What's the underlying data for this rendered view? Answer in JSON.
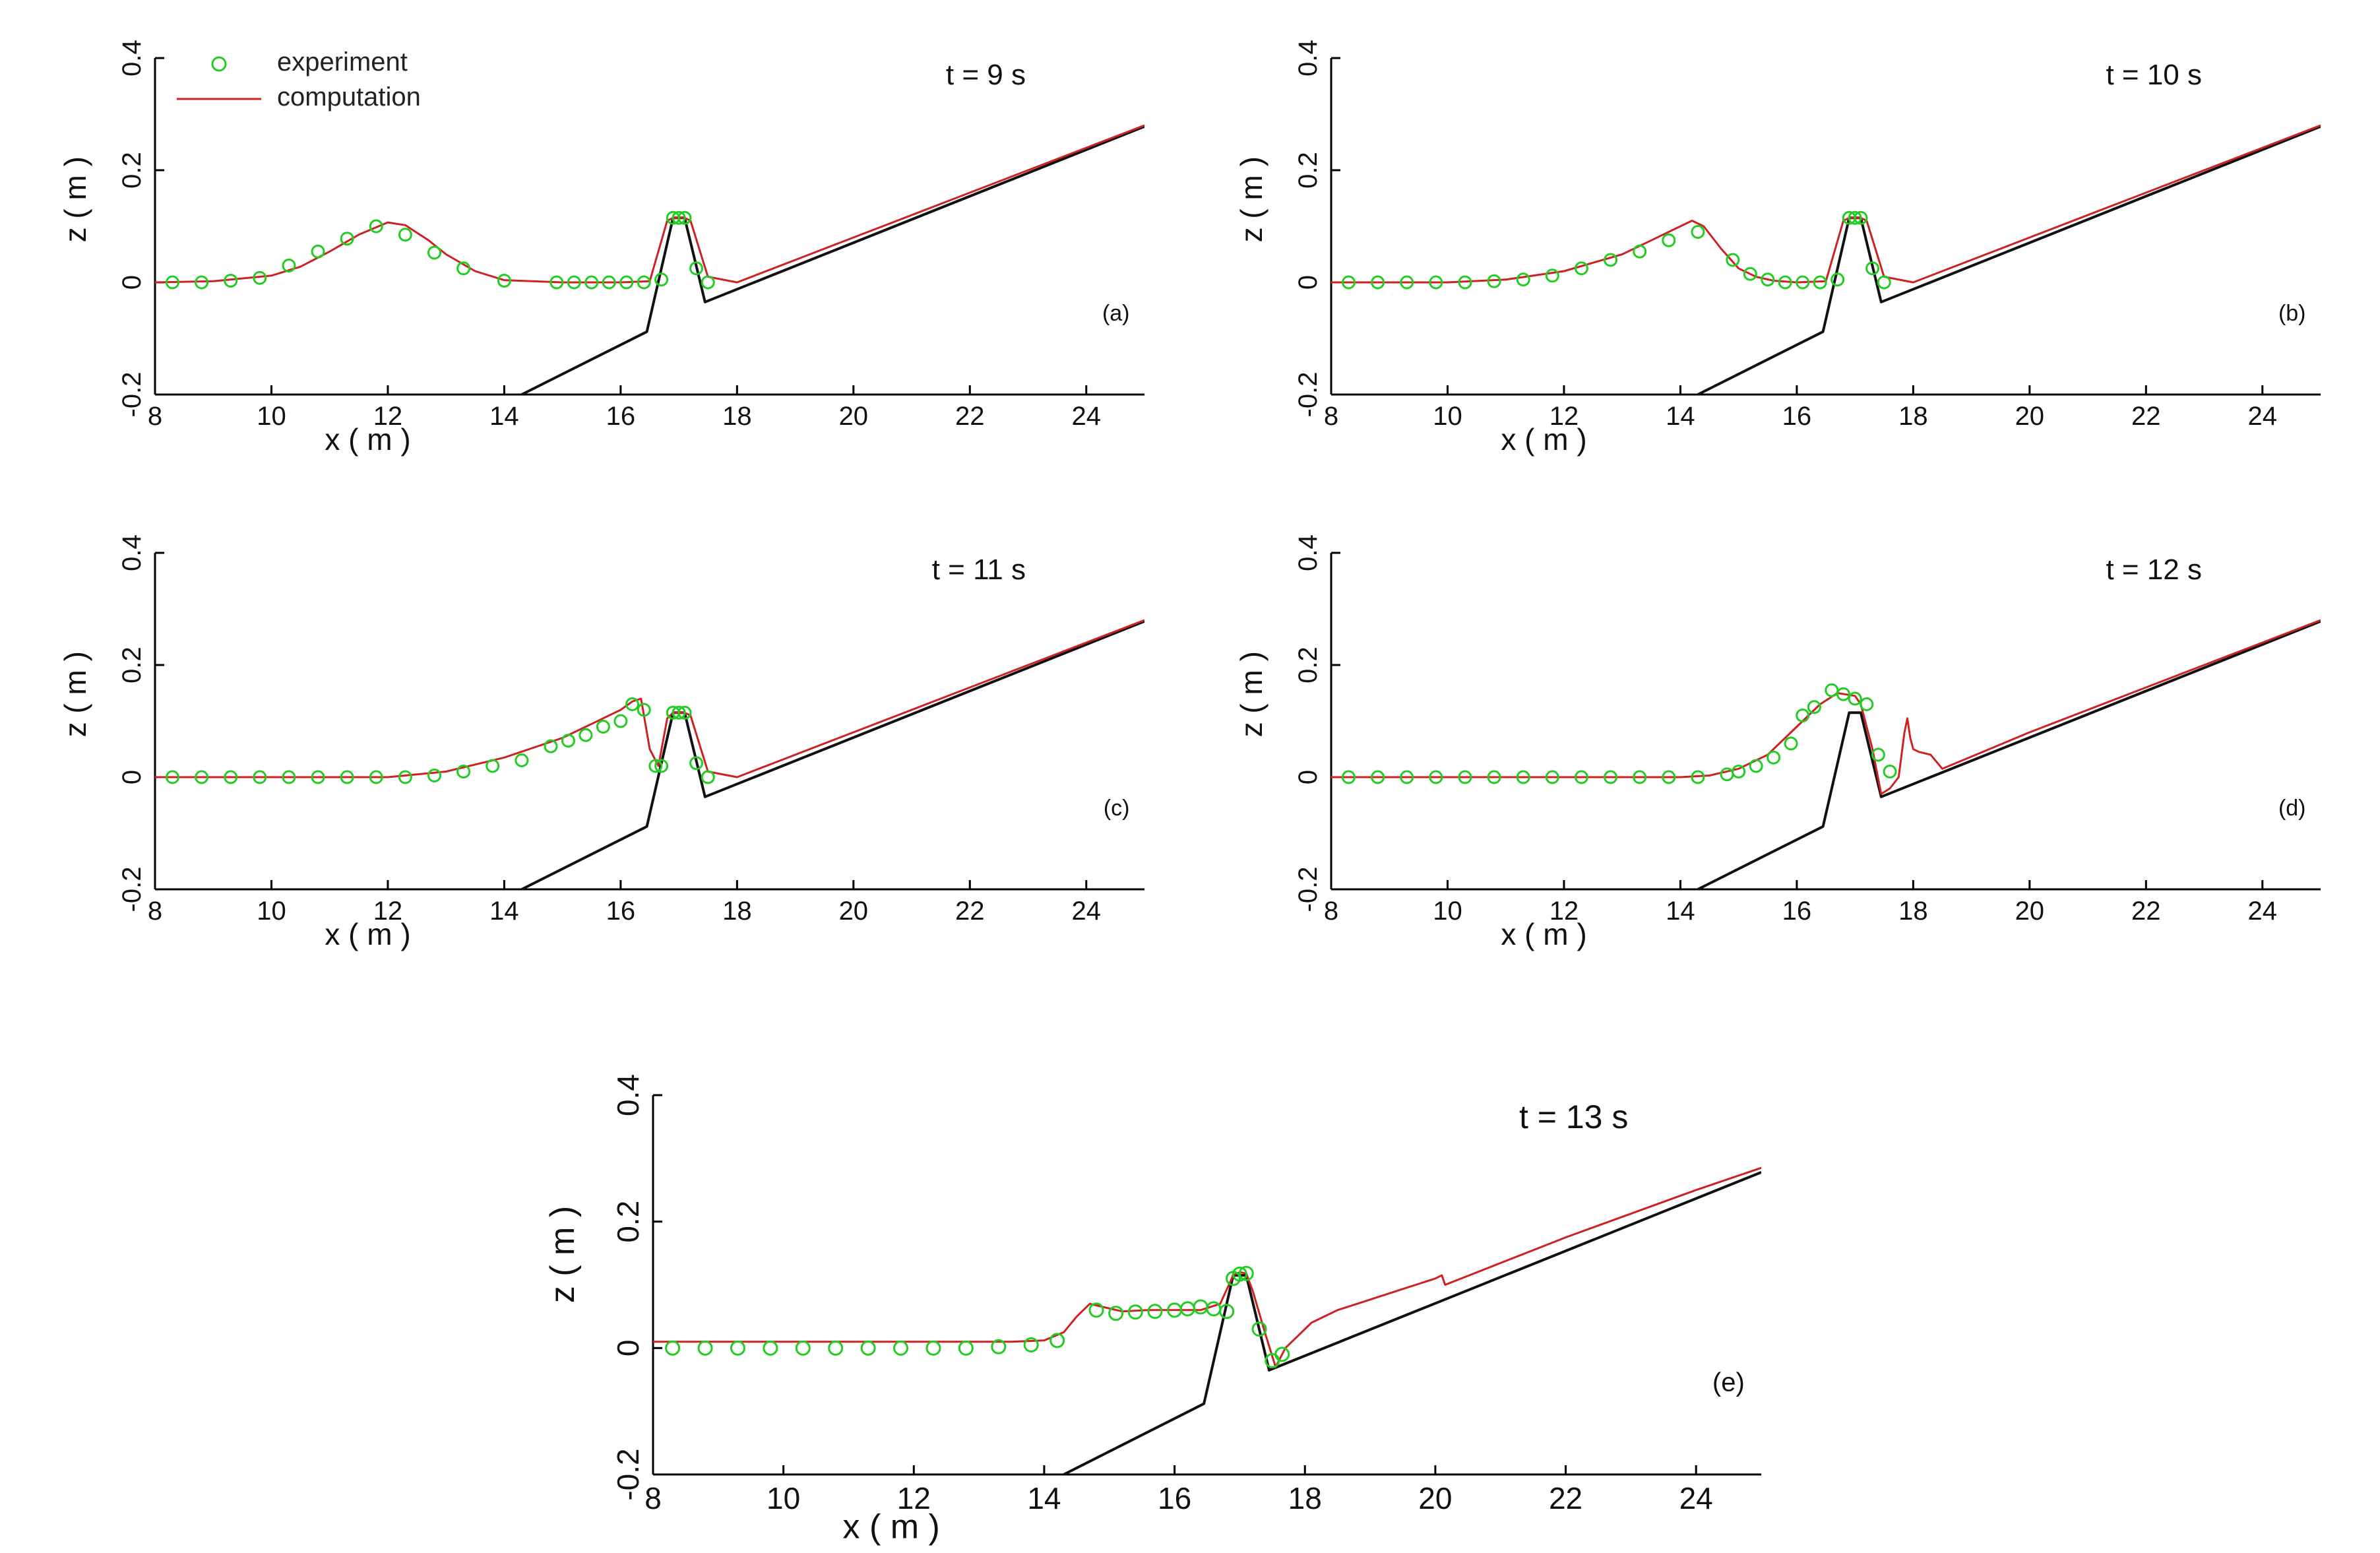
{
  "legend": {
    "experiment_label": "experiment",
    "computation_label": "computation",
    "placement": "top-left of panel (a)",
    "experiment_color": "#22cc22",
    "computation_color": "#cc2222",
    "bottom_color": "#111111"
  },
  "chart_data": [
    {
      "type": "line",
      "panel_label": "(a)",
      "time_label": "t = 9 s",
      "xlabel": "x ( m )",
      "ylabel": "z ( m )",
      "xlim": [
        8,
        25
      ],
      "ylim": [
        -0.2,
        0.4
      ],
      "xticks": [
        "8",
        "10",
        "12",
        "14",
        "16",
        "18",
        "20",
        "22",
        "24"
      ],
      "yticks": [
        "-0.2",
        "0",
        "0.2",
        "0.4"
      ],
      "grid": false,
      "series": [
        {
          "name": "computation",
          "x": [
            8.0,
            9.0,
            10.0,
            10.5,
            11.0,
            11.5,
            12.0,
            12.3,
            12.7,
            13.0,
            13.5,
            14.0,
            15.0,
            16.0,
            16.5,
            16.8,
            16.9,
            17.0,
            17.1,
            17.2,
            17.5,
            18.0,
            20.0,
            22.0,
            24.0,
            25.0
          ],
          "y": [
            0.0,
            0.002,
            0.012,
            0.028,
            0.055,
            0.085,
            0.107,
            0.102,
            0.075,
            0.05,
            0.02,
            0.004,
            0.0,
            0.0,
            0.002,
            0.11,
            0.115,
            0.115,
            0.115,
            0.11,
            0.01,
            0.0,
            0.08,
            0.16,
            0.24,
            0.28
          ]
        },
        {
          "name": "experiment",
          "x": [
            8.3,
            8.8,
            9.3,
            9.8,
            10.3,
            10.8,
            11.3,
            11.8,
            12.3,
            12.8,
            13.3,
            14.0,
            14.9,
            15.2,
            15.5,
            15.8,
            16.1,
            16.4,
            16.7,
            16.9,
            17.0,
            17.1,
            17.3,
            17.5
          ],
          "y": [
            0.0,
            0.0,
            0.003,
            0.008,
            0.03,
            0.055,
            0.078,
            0.1,
            0.085,
            0.053,
            0.025,
            0.003,
            0.0,
            0.0,
            0.0,
            0.0,
            0.0,
            0.0,
            0.005,
            0.115,
            0.115,
            0.115,
            0.025,
            0.0
          ]
        },
        {
          "name": "bottom",
          "x": [
            14.3,
            16.45,
            16.9,
            17.1,
            17.45,
            25.0
          ],
          "y": [
            -0.2,
            -0.088,
            0.115,
            0.115,
            -0.035,
            0.278
          ]
        }
      ]
    },
    {
      "type": "line",
      "panel_label": "(b)",
      "time_label": "t = 10 s",
      "xlabel": "x ( m )",
      "ylabel": "z ( m )",
      "xlim": [
        8,
        25
      ],
      "ylim": [
        -0.2,
        0.4
      ],
      "xticks": [
        "8",
        "10",
        "12",
        "14",
        "16",
        "18",
        "20",
        "22",
        "24"
      ],
      "yticks": [
        "-0.2",
        "0",
        "0.2",
        "0.4"
      ],
      "grid": false,
      "series": [
        {
          "name": "computation",
          "x": [
            8.0,
            10.0,
            11.0,
            12.0,
            13.0,
            13.5,
            14.0,
            14.2,
            14.4,
            14.7,
            15.0,
            15.3,
            15.6,
            16.0,
            16.5,
            16.8,
            16.9,
            17.0,
            17.1,
            17.2,
            17.5,
            18.0,
            20.0,
            22.0,
            24.0,
            25.0
          ],
          "y": [
            0.0,
            0.0,
            0.005,
            0.02,
            0.05,
            0.075,
            0.1,
            0.11,
            0.1,
            0.06,
            0.025,
            0.01,
            0.003,
            0.0,
            0.002,
            0.11,
            0.115,
            0.115,
            0.115,
            0.11,
            0.01,
            0.0,
            0.08,
            0.16,
            0.24,
            0.28
          ]
        },
        {
          "name": "experiment",
          "x": [
            8.3,
            8.8,
            9.3,
            9.8,
            10.3,
            10.8,
            11.3,
            11.8,
            12.3,
            12.8,
            13.3,
            13.8,
            14.3,
            14.9,
            15.2,
            15.5,
            15.8,
            16.1,
            16.4,
            16.7,
            16.9,
            17.0,
            17.1,
            17.3,
            17.5
          ],
          "y": [
            0.0,
            0.0,
            0.0,
            0.0,
            0.0,
            0.002,
            0.005,
            0.012,
            0.025,
            0.04,
            0.055,
            0.075,
            0.09,
            0.04,
            0.015,
            0.005,
            0.0,
            0.0,
            0.0,
            0.005,
            0.115,
            0.115,
            0.115,
            0.025,
            0.0
          ]
        },
        {
          "name": "bottom",
          "x": [
            14.3,
            16.45,
            16.9,
            17.1,
            17.45,
            25.0
          ],
          "y": [
            -0.2,
            -0.088,
            0.115,
            0.115,
            -0.035,
            0.278
          ]
        }
      ]
    },
    {
      "type": "line",
      "panel_label": "(c)",
      "time_label": "t = 11 s",
      "xlabel": "x ( m )",
      "ylabel": "z ( m )",
      "xlim": [
        8,
        25
      ],
      "ylim": [
        -0.2,
        0.4
      ],
      "xticks": [
        "8",
        "10",
        "12",
        "14",
        "16",
        "18",
        "20",
        "22",
        "24"
      ],
      "yticks": [
        "-0.2",
        "0",
        "0.2",
        "0.4"
      ],
      "grid": false,
      "series": [
        {
          "name": "computation",
          "x": [
            8.0,
            12.0,
            13.0,
            14.0,
            15.0,
            15.5,
            16.0,
            16.2,
            16.35,
            16.5,
            16.65,
            16.8,
            16.9,
            17.0,
            17.1,
            17.2,
            17.5,
            18.0,
            20.0,
            22.0,
            24.0,
            25.0
          ],
          "y": [
            0.0,
            0.0,
            0.01,
            0.035,
            0.07,
            0.095,
            0.12,
            0.135,
            0.14,
            0.05,
            0.02,
            0.105,
            0.115,
            0.115,
            0.115,
            0.11,
            0.01,
            0.0,
            0.08,
            0.16,
            0.24,
            0.28
          ]
        },
        {
          "name": "experiment",
          "x": [
            8.3,
            8.8,
            9.3,
            9.8,
            10.3,
            10.8,
            11.3,
            11.8,
            12.3,
            12.8,
            13.3,
            13.8,
            14.3,
            14.8,
            15.1,
            15.4,
            15.7,
            16.0,
            16.2,
            16.4,
            16.6,
            16.7,
            16.9,
            17.0,
            17.1,
            17.3,
            17.5
          ],
          "y": [
            0.0,
            0.0,
            0.0,
            0.0,
            0.0,
            0.0,
            0.0,
            0.0,
            0.0,
            0.003,
            0.01,
            0.02,
            0.03,
            0.055,
            0.065,
            0.075,
            0.09,
            0.1,
            0.13,
            0.12,
            0.02,
            0.02,
            0.115,
            0.115,
            0.115,
            0.025,
            0.0
          ]
        },
        {
          "name": "bottom",
          "x": [
            14.3,
            16.45,
            16.9,
            17.1,
            17.45,
            25.0
          ],
          "y": [
            -0.2,
            -0.088,
            0.115,
            0.115,
            -0.035,
            0.278
          ]
        }
      ]
    },
    {
      "type": "line",
      "panel_label": "(d)",
      "time_label": "t = 12 s",
      "xlabel": "x ( m )",
      "ylabel": "z ( m )",
      "xlim": [
        8,
        25
      ],
      "ylim": [
        -0.2,
        0.4
      ],
      "xticks": [
        "8",
        "10",
        "12",
        "14",
        "16",
        "18",
        "20",
        "22",
        "24"
      ],
      "yticks": [
        "-0.2",
        "0",
        "0.2",
        "0.4"
      ],
      "grid": false,
      "series": [
        {
          "name": "computation",
          "x": [
            8.0,
            14.0,
            14.5,
            15.0,
            15.5,
            16.0,
            16.4,
            16.7,
            17.0,
            17.1,
            17.3,
            17.45,
            17.6,
            17.75,
            17.85,
            17.9,
            17.95,
            18.0,
            18.1,
            18.3,
            18.5,
            20.0,
            22.0,
            24.0,
            25.0
          ],
          "y": [
            0.0,
            0.0,
            0.003,
            0.015,
            0.04,
            0.09,
            0.13,
            0.15,
            0.145,
            0.13,
            0.05,
            -0.03,
            -0.02,
            0.0,
            0.08,
            0.105,
            0.07,
            0.05,
            0.045,
            0.04,
            0.015,
            0.08,
            0.16,
            0.24,
            0.28
          ]
        },
        {
          "name": "experiment",
          "x": [
            8.3,
            8.8,
            9.3,
            9.8,
            10.3,
            10.8,
            11.3,
            11.8,
            12.3,
            12.8,
            13.3,
            13.8,
            14.3,
            14.8,
            15.0,
            15.3,
            15.6,
            15.9,
            16.1,
            16.3,
            16.6,
            16.8,
            17.0,
            17.2,
            17.4,
            17.6
          ],
          "y": [
            0.0,
            0.0,
            0.0,
            0.0,
            0.0,
            0.0,
            0.0,
            0.0,
            0.0,
            0.0,
            0.0,
            0.0,
            0.0,
            0.005,
            0.01,
            0.02,
            0.035,
            0.06,
            0.11,
            0.125,
            0.155,
            0.148,
            0.14,
            0.13,
            0.04,
            0.01
          ]
        },
        {
          "name": "bottom",
          "x": [
            14.3,
            16.45,
            16.9,
            17.1,
            17.45,
            25.0
          ],
          "y": [
            -0.2,
            -0.088,
            0.115,
            0.115,
            -0.035,
            0.278
          ]
        }
      ]
    },
    {
      "type": "line",
      "panel_label": "(e)",
      "time_label": "t = 13 s",
      "xlabel": "x ( m )",
      "ylabel": "z ( m )",
      "xlim": [
        8,
        25
      ],
      "ylim": [
        -0.2,
        0.4
      ],
      "xticks": [
        "8",
        "10",
        "12",
        "14",
        "16",
        "18",
        "20",
        "22",
        "24"
      ],
      "yticks": [
        "-0.2",
        "0",
        "0.2",
        "0.4"
      ],
      "grid": false,
      "series": [
        {
          "name": "computation",
          "x": [
            8.0,
            13.5,
            14.0,
            14.3,
            14.5,
            14.7,
            14.9,
            15.2,
            15.6,
            16.0,
            16.4,
            16.7,
            16.9,
            17.0,
            17.1,
            17.2,
            17.4,
            17.55,
            17.7,
            17.9,
            18.1,
            18.3,
            18.5,
            18.8,
            19.1,
            19.4,
            19.7,
            20.0,
            20.1,
            20.15,
            22.0,
            24.0,
            25.0
          ],
          "y": [
            0.01,
            0.01,
            0.012,
            0.025,
            0.05,
            0.07,
            0.065,
            0.058,
            0.06,
            0.06,
            0.06,
            0.07,
            0.115,
            0.12,
            0.118,
            0.09,
            0.02,
            -0.03,
            0.0,
            0.02,
            0.04,
            0.05,
            0.06,
            0.07,
            0.08,
            0.09,
            0.1,
            0.11,
            0.115,
            0.1,
            0.175,
            0.25,
            0.285
          ]
        },
        {
          "name": "experiment",
          "x": [
            8.3,
            8.8,
            9.3,
            9.8,
            10.3,
            10.8,
            11.3,
            11.8,
            12.3,
            12.8,
            13.3,
            13.8,
            14.2,
            14.8,
            15.1,
            15.4,
            15.7,
            16.0,
            16.2,
            16.4,
            16.6,
            16.8,
            16.9,
            17.0,
            17.1,
            17.3,
            17.5,
            17.65
          ],
          "y": [
            0.0,
            0.0,
            0.0,
            0.0,
            0.0,
            0.0,
            0.0,
            0.0,
            0.0,
            0.0,
            0.002,
            0.005,
            0.012,
            0.06,
            0.055,
            0.057,
            0.058,
            0.06,
            0.062,
            0.065,
            0.062,
            0.058,
            0.11,
            0.117,
            0.118,
            0.03,
            -0.02,
            -0.01
          ]
        },
        {
          "name": "bottom",
          "x": [
            14.3,
            16.45,
            16.9,
            17.1,
            17.45,
            25.0
          ],
          "y": [
            -0.2,
            -0.088,
            0.115,
            0.115,
            -0.035,
            0.278
          ]
        }
      ]
    }
  ]
}
